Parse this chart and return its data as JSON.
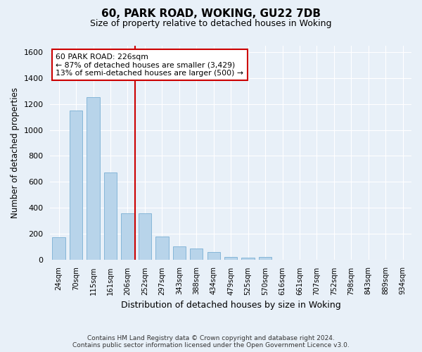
{
  "title": "60, PARK ROAD, WOKING, GU22 7DB",
  "subtitle": "Size of property relative to detached houses in Woking",
  "xlabel": "Distribution of detached houses by size in Woking",
  "ylabel": "Number of detached properties",
  "categories": [
    "24sqm",
    "70sqm",
    "115sqm",
    "161sqm",
    "206sqm",
    "252sqm",
    "297sqm",
    "343sqm",
    "388sqm",
    "434sqm",
    "479sqm",
    "525sqm",
    "570sqm",
    "616sqm",
    "661sqm",
    "707sqm",
    "752sqm",
    "798sqm",
    "843sqm",
    "889sqm",
    "934sqm"
  ],
  "values": [
    170,
    1150,
    1255,
    670,
    355,
    355,
    175,
    100,
    85,
    55,
    20,
    15,
    20,
    0,
    0,
    0,
    0,
    0,
    0,
    0,
    0
  ],
  "bar_color": "#b8d4ea",
  "bar_edge_color": "#7aafd4",
  "vline_color": "#cc0000",
  "annotation_box_color": "#ffffff",
  "annotation_box_edge": "#cc0000",
  "property_label": "60 PARK ROAD: 226sqm",
  "annotation_line1": "← 87% of detached houses are smaller (3,429)",
  "annotation_line2": "13% of semi-detached houses are larger (500) →",
  "ylim": [
    0,
    1650
  ],
  "yticks": [
    0,
    200,
    400,
    600,
    800,
    1000,
    1200,
    1400,
    1600
  ],
  "bg_color": "#e8f0f8",
  "grid_color": "#ffffff",
  "footer1": "Contains HM Land Registry data © Crown copyright and database right 2024.",
  "footer2": "Contains public sector information licensed under the Open Government Licence v3.0.",
  "vline_x_index": 4.44
}
